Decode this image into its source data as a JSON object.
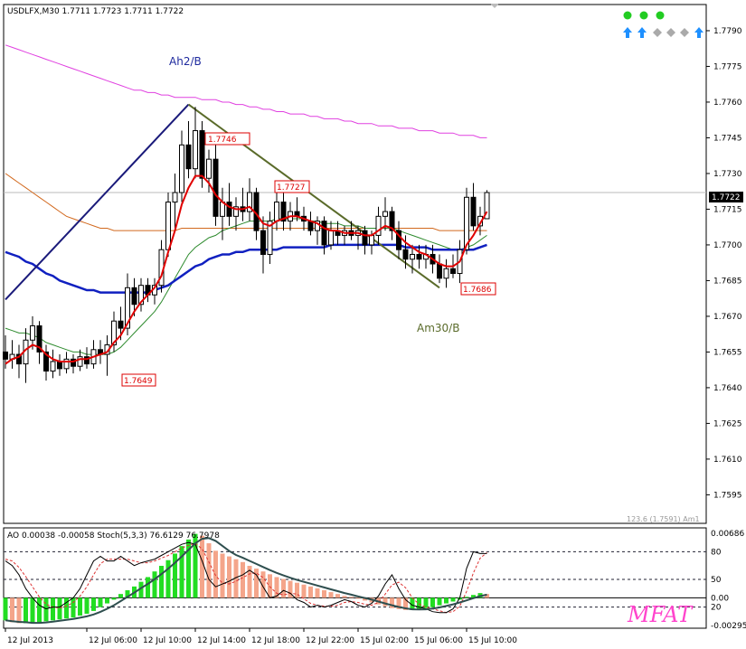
{
  "header": {
    "symbol_line": "USDLFX,M30  1.7711 1.7723 1.7711 1.7722"
  },
  "status_panel": {
    "dots": [
      "green",
      "green",
      "green"
    ],
    "arrows": [
      "up-arrow-icon",
      "up-arrow-icon",
      "diamond-icon",
      "diamond-icon",
      "diamond-icon",
      "up-arrow-icon"
    ],
    "colors": {
      "dot": "#22cc22",
      "up": "#1e90ff",
      "diamond": "#aaaaaa"
    }
  },
  "main_panel": {
    "price_labels": [
      "1.7790",
      "1.7775",
      "1.7760",
      "1.7745",
      "1.7730",
      "1.7715",
      "1.7700",
      "1.7685",
      "1.7670",
      "1.7655",
      "1.7640",
      "1.7625",
      "1.7610",
      "1.7595"
    ],
    "current_price": "1.7722",
    "wave_labels": {
      "ah2": "Ah2/B",
      "am30": "Am30/B"
    },
    "level_tags": [
      "1.7746",
      "1.7727",
      "1.7686",
      "1.7649"
    ],
    "fib_label": "123.6 (1.7591) Am1"
  },
  "sub_panel": {
    "indicator_line": "AO 0.00038 -0.00058  Stoch(5,3,3) 76.6129 76.7978",
    "right_labels": [
      "0.00686",
      "80",
      "50",
      "0.00",
      "20",
      "-0.00295"
    ],
    "watermark": "MFAT"
  },
  "time_axis": [
    "12 Jul 2013",
    "12 Jul 06:00",
    "12 Jul 10:00",
    "12 Jul 14:00",
    "12 Jul 18:00",
    "12 Jul 22:00",
    "15 Jul 02:00",
    "15 Jul 06:00",
    "15 Jul 10:00"
  ],
  "chart_data": {
    "type": "candlestick",
    "title": "USDLFX,M30",
    "ylim": [
      1.7583,
      1.7801
    ],
    "candles": [
      [
        1.7655,
        1.7662,
        1.7648,
        1.7652
      ],
      [
        1.7652,
        1.766,
        1.7648,
        1.7654
      ],
      [
        1.7654,
        1.7658,
        1.7644,
        1.765
      ],
      [
        1.765,
        1.7665,
        1.7642,
        1.766
      ],
      [
        1.766,
        1.767,
        1.7656,
        1.7666
      ],
      [
        1.7666,
        1.7668,
        1.765,
        1.7655
      ],
      [
        1.7655,
        1.7658,
        1.7643,
        1.7647
      ],
      [
        1.7647,
        1.7656,
        1.7644,
        1.7651
      ],
      [
        1.7651,
        1.7654,
        1.7645,
        1.7648
      ],
      [
        1.7648,
        1.7655,
        1.7646,
        1.7652
      ],
      [
        1.7652,
        1.7654,
        1.7646,
        1.7649
      ],
      [
        1.7649,
        1.7656,
        1.7647,
        1.7653
      ],
      [
        1.7653,
        1.7657,
        1.7648,
        1.765
      ],
      [
        1.765,
        1.766,
        1.7648,
        1.7656
      ],
      [
        1.7656,
        1.766,
        1.765,
        1.7654
      ],
      [
        1.7654,
        1.7662,
        1.7645,
        1.7658
      ],
      [
        1.7658,
        1.7672,
        1.7655,
        1.7668
      ],
      [
        1.7668,
        1.7674,
        1.766,
        1.7665
      ],
      [
        1.7665,
        1.7688,
        1.7662,
        1.7682
      ],
      [
        1.7682,
        1.7686,
        1.767,
        1.7675
      ],
      [
        1.7675,
        1.7686,
        1.7672,
        1.7683
      ],
      [
        1.7683,
        1.7686,
        1.7676,
        1.7679
      ],
      [
        1.7679,
        1.7686,
        1.7675,
        1.7683
      ],
      [
        1.7683,
        1.7702,
        1.768,
        1.7698
      ],
      [
        1.7698,
        1.7722,
        1.7695,
        1.7718
      ],
      [
        1.7718,
        1.773,
        1.7706,
        1.7722
      ],
      [
        1.7722,
        1.7748,
        1.7718,
        1.7742
      ],
      [
        1.7742,
        1.7752,
        1.7728,
        1.7732
      ],
      [
        1.7732,
        1.7758,
        1.7728,
        1.7748
      ],
      [
        1.7748,
        1.7752,
        1.7724,
        1.7728
      ],
      [
        1.7728,
        1.774,
        1.7722,
        1.7736
      ],
      [
        1.7736,
        1.7742,
        1.7708,
        1.7712
      ],
      [
        1.7712,
        1.7724,
        1.7702,
        1.7718
      ],
      [
        1.7718,
        1.7726,
        1.7708,
        1.7712
      ],
      [
        1.7712,
        1.772,
        1.7706,
        1.7716
      ],
      [
        1.7716,
        1.7724,
        1.771,
        1.7714
      ],
      [
        1.7714,
        1.7728,
        1.771,
        1.7722
      ],
      [
        1.7722,
        1.7724,
        1.7702,
        1.7706
      ],
      [
        1.7706,
        1.7712,
        1.7688,
        1.7696
      ],
      [
        1.7696,
        1.7714,
        1.7692,
        1.771
      ],
      [
        1.771,
        1.7726,
        1.7706,
        1.7718
      ],
      [
        1.7718,
        1.7722,
        1.7706,
        1.771
      ],
      [
        1.771,
        1.7718,
        1.7706,
        1.7714
      ],
      [
        1.7714,
        1.772,
        1.771,
        1.7712
      ],
      [
        1.7712,
        1.7716,
        1.7706,
        1.771
      ],
      [
        1.771,
        1.7714,
        1.7704,
        1.7706
      ],
      [
        1.7706,
        1.7712,
        1.77,
        1.771
      ],
      [
        1.771,
        1.7712,
        1.7696,
        1.77
      ],
      [
        1.77,
        1.771,
        1.7698,
        1.7706
      ],
      [
        1.7706,
        1.771,
        1.77,
        1.7704
      ],
      [
        1.7704,
        1.7708,
        1.77,
        1.7706
      ],
      [
        1.7706,
        1.771,
        1.7702,
        1.7704
      ],
      [
        1.7704,
        1.7708,
        1.7698,
        1.7706
      ],
      [
        1.7706,
        1.7708,
        1.7696,
        1.77
      ],
      [
        1.77,
        1.7706,
        1.7696,
        1.7704
      ],
      [
        1.7704,
        1.7716,
        1.77,
        1.7712
      ],
      [
        1.7712,
        1.772,
        1.7706,
        1.7714
      ],
      [
        1.7714,
        1.7716,
        1.7702,
        1.7706
      ],
      [
        1.7706,
        1.771,
        1.7694,
        1.7698
      ],
      [
        1.7698,
        1.7704,
        1.769,
        1.7694
      ],
      [
        1.7694,
        1.77,
        1.7688,
        1.7696
      ],
      [
        1.7696,
        1.77,
        1.769,
        1.7694
      ],
      [
        1.7694,
        1.77,
        1.769,
        1.7696
      ],
      [
        1.7696,
        1.77,
        1.7688,
        1.7692
      ],
      [
        1.7692,
        1.7696,
        1.7684,
        1.7686
      ],
      [
        1.7686,
        1.7694,
        1.7682,
        1.769
      ],
      [
        1.769,
        1.7696,
        1.7686,
        1.7688
      ],
      [
        1.7688,
        1.7702,
        1.7684,
        1.7698
      ],
      [
        1.7698,
        1.7724,
        1.7696,
        1.772
      ],
      [
        1.772,
        1.7726,
        1.7706,
        1.7708
      ],
      [
        1.7708,
        1.7716,
        1.7704,
        1.7712
      ],
      [
        1.7711,
        1.7723,
        1.7711,
        1.7722
      ]
    ],
    "ma_red": [
      1.765,
      1.7652,
      1.7653,
      1.7656,
      1.7658,
      1.7657,
      1.7654,
      1.7652,
      1.7651,
      1.7651,
      1.7651,
      1.7652,
      1.7652,
      1.7653,
      1.7654,
      1.7655,
      1.7659,
      1.7662,
      1.7667,
      1.7672,
      1.7676,
      1.7679,
      1.7682,
      1.7687,
      1.7697,
      1.7706,
      1.7717,
      1.7724,
      1.7729,
      1.7729,
      1.7726,
      1.7721,
      1.7718,
      1.7716,
      1.7715,
      1.7715,
      1.7716,
      1.7713,
      1.7709,
      1.7708,
      1.771,
      1.7711,
      1.7712,
      1.7712,
      1.7711,
      1.771,
      1.7709,
      1.7707,
      1.7706,
      1.7706,
      1.7705,
      1.7705,
      1.7705,
      1.7704,
      1.7704,
      1.7706,
      1.7708,
      1.7707,
      1.7704,
      1.7701,
      1.7699,
      1.7697,
      1.7696,
      1.7694,
      1.7692,
      1.7691,
      1.7691,
      1.7693,
      1.77,
      1.7704,
      1.7709,
      1.7714
    ],
    "ma_green": [
      1.7665,
      1.7664,
      1.7663,
      1.7663,
      1.7662,
      1.7661,
      1.7659,
      1.7658,
      1.7657,
      1.7656,
      1.7655,
      1.7655,
      1.7654,
      1.7654,
      1.7654,
      1.7654,
      1.7655,
      1.7657,
      1.766,
      1.7663,
      1.7666,
      1.7669,
      1.7672,
      1.7676,
      1.7681,
      1.7686,
      1.7691,
      1.7696,
      1.7699,
      1.7701,
      1.7703,
      1.7704,
      1.7706,
      1.7707,
      1.7708,
      1.7709,
      1.771,
      1.771,
      1.771,
      1.771,
      1.7711,
      1.7711,
      1.7711,
      1.7711,
      1.7711,
      1.771,
      1.771,
      1.7709,
      1.7709,
      1.7709,
      1.7708,
      1.7708,
      1.7708,
      1.7707,
      1.7707,
      1.7707,
      1.7707,
      1.7707,
      1.7706,
      1.7705,
      1.7704,
      1.7703,
      1.7702,
      1.7701,
      1.77,
      1.7699,
      1.7698,
      1.7698,
      1.7699,
      1.77,
      1.7702,
      1.7704
    ],
    "ma_blue": [
      1.7697,
      1.7696,
      1.7695,
      1.7693,
      1.7692,
      1.769,
      1.7688,
      1.7687,
      1.7685,
      1.7684,
      1.7683,
      1.7682,
      1.7681,
      1.7681,
      1.768,
      1.768,
      1.768,
      1.768,
      1.768,
      1.768,
      1.768,
      1.768,
      1.7681,
      1.7682,
      1.7683,
      1.7685,
      1.7687,
      1.7689,
      1.7691,
      1.7692,
      1.7694,
      1.7695,
      1.7696,
      1.7696,
      1.7697,
      1.7697,
      1.7698,
      1.7698,
      1.7698,
      1.7698,
      1.7698,
      1.7699,
      1.7699,
      1.7699,
      1.7699,
      1.7699,
      1.7699,
      1.7699,
      1.77,
      1.77,
      1.77,
      1.77,
      1.77,
      1.77,
      1.77,
      1.77,
      1.77,
      1.77,
      1.77,
      1.7699,
      1.7699,
      1.7699,
      1.7699,
      1.7698,
      1.7698,
      1.7698,
      1.7698,
      1.7698,
      1.7698,
      1.7698,
      1.7699,
      1.77
    ],
    "ma_orange": [
      1.773,
      1.7728,
      1.7726,
      1.7724,
      1.7722,
      1.772,
      1.7718,
      1.7716,
      1.7714,
      1.7712,
      1.7711,
      1.771,
      1.7709,
      1.7708,
      1.7707,
      1.7707,
      1.7706,
      1.7706,
      1.7706,
      1.7706,
      1.7706,
      1.7706,
      1.7706,
      1.7706,
      1.7706,
      1.7706,
      1.7707,
      1.7707,
      1.7707,
      1.7707,
      1.7707,
      1.7707,
      1.7707,
      1.7707,
      1.7707,
      1.7707,
      1.7707,
      1.7707,
      1.7707,
      1.7707,
      1.7707,
      1.7707,
      1.7707,
      1.7707,
      1.7707,
      1.7707,
      1.7707,
      1.7707,
      1.7707,
      1.7707,
      1.7707,
      1.7707,
      1.7707,
      1.7707,
      1.7707,
      1.7707,
      1.7707,
      1.7707,
      1.7707,
      1.7707,
      1.7707,
      1.7707,
      1.7707,
      1.7707,
      1.7706,
      1.7706,
      1.7706,
      1.7706,
      1.7706,
      1.7706,
      1.7706,
      1.7706
    ],
    "ma_magenta": [
      1.7784,
      1.7783,
      1.7782,
      1.7781,
      1.778,
      1.7779,
      1.7778,
      1.7777,
      1.7776,
      1.7775,
      1.7774,
      1.7773,
      1.7772,
      1.7771,
      1.777,
      1.7769,
      1.7768,
      1.7767,
      1.7766,
      1.7765,
      1.7765,
      1.7764,
      1.7764,
      1.7763,
      1.7763,
      1.7762,
      1.7762,
      1.7762,
      1.7762,
      1.7761,
      1.7761,
      1.7761,
      1.776,
      1.776,
      1.7759,
      1.7759,
      1.7758,
      1.7758,
      1.7757,
      1.7757,
      1.7756,
      1.7756,
      1.7755,
      1.7755,
      1.7755,
      1.7754,
      1.7754,
      1.7753,
      1.7753,
      1.7753,
      1.7752,
      1.7752,
      1.7751,
      1.7751,
      1.7751,
      1.775,
      1.775,
      1.775,
      1.7749,
      1.7749,
      1.7749,
      1.7748,
      1.7748,
      1.7748,
      1.7747,
      1.7747,
      1.7747,
      1.7746,
      1.7746,
      1.7746,
      1.7745,
      1.7745
    ],
    "ao": [
      -0.0024,
      -0.0026,
      -0.0027,
      -0.0027,
      -0.0027,
      -0.0026,
      -0.0025,
      -0.0024,
      -0.0023,
      -0.0022,
      -0.0021,
      -0.0019,
      -0.0017,
      -0.0014,
      -0.001,
      -0.0006,
      -0.0002,
      0.0004,
      0.0008,
      0.0012,
      0.0017,
      0.0022,
      0.0028,
      0.0034,
      0.004,
      0.0047,
      0.0055,
      0.0062,
      0.0068,
      0.0066,
      0.0058,
      0.005,
      0.0047,
      0.0044,
      0.0041,
      0.0038,
      0.0034,
      0.0031,
      0.0028,
      0.0025,
      0.0022,
      0.002,
      0.0018,
      0.0016,
      0.0014,
      0.0012,
      0.001,
      0.0008,
      0.0006,
      0.0004,
      0.0002,
      0.0001,
      -0.0001,
      -0.0003,
      -0.0005,
      -0.0007,
      -0.0009,
      -0.0011,
      -0.0012,
      -0.0013,
      -0.0013,
      -0.0012,
      -0.0011,
      -0.001,
      -0.0008,
      -0.0006,
      -0.0004,
      -0.0002,
      0.0001,
      0.0003,
      0.0005,
      0.0004
    ],
    "stoch_main": [
      70,
      65,
      55,
      40,
      30,
      22,
      18,
      20,
      20,
      25,
      30,
      40,
      55,
      70,
      75,
      70,
      70,
      75,
      70,
      65,
      68,
      70,
      72,
      76,
      80,
      84,
      88,
      90,
      88,
      70,
      50,
      42,
      45,
      48,
      52,
      55,
      60,
      55,
      42,
      30,
      32,
      38,
      35,
      28,
      25,
      20,
      22,
      20,
      22,
      25,
      28,
      26,
      22,
      20,
      24,
      32,
      45,
      55,
      40,
      28,
      22,
      20,
      18,
      15,
      14,
      14,
      18,
      30,
      62,
      80,
      78,
      78
    ],
    "stoch_signal": [
      72,
      70,
      63,
      53,
      42,
      31,
      23,
      20,
      19,
      21,
      25,
      32,
      42,
      55,
      67,
      72,
      72,
      72,
      72,
      70,
      68,
      68,
      70,
      73,
      76,
      80,
      84,
      87,
      89,
      83,
      69,
      54,
      46,
      45,
      48,
      52,
      56,
      57,
      52,
      42,
      35,
      33,
      35,
      34,
      29,
      24,
      22,
      21,
      21,
      22,
      25,
      26,
      25,
      23,
      22,
      25,
      34,
      44,
      47,
      41,
      30,
      23,
      20,
      18,
      16,
      14,
      15,
      21,
      37,
      57,
      73,
      79
    ]
  }
}
